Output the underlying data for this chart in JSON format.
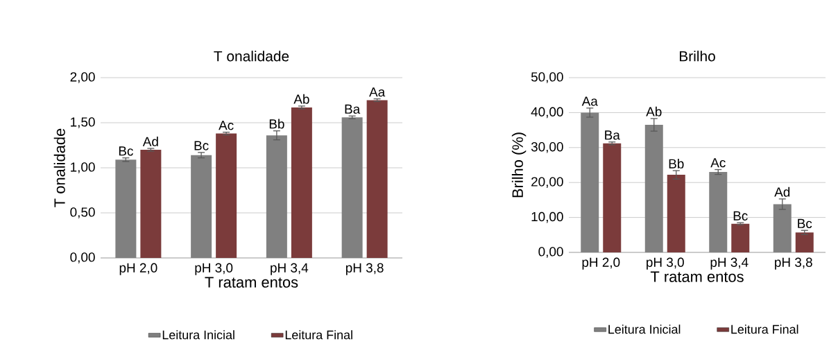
{
  "chart_data": [
    {
      "type": "bar",
      "title": "T onalidade",
      "xlabel": "T ratam entos",
      "ylabel": "T onalidade",
      "categories": [
        "pH 2,0",
        "pH 3,0",
        "pH 3,4",
        "pH 3,8"
      ],
      "series": [
        {
          "name": "Leitura Inicial",
          "color": "#808080",
          "values": [
            1.09,
            1.14,
            1.36,
            1.56
          ],
          "errors": [
            0.02,
            0.03,
            0.05,
            0.015
          ],
          "value_labels": [
            "Bc",
            "Bc",
            "Bb",
            "Ba"
          ]
        },
        {
          "name": "Leitura Final",
          "color": "#7b3b3b",
          "values": [
            1.2,
            1.38,
            1.67,
            1.75
          ],
          "errors": [
            0.015,
            0.015,
            0.015,
            0.015
          ],
          "value_labels": [
            "Ad",
            "Ac",
            "Ab",
            "Aa"
          ]
        }
      ],
      "ylim": [
        0,
        2
      ],
      "yticks": [
        {
          "value": 0,
          "label": "0,00"
        },
        {
          "value": 0.5,
          "label": "0,50"
        },
        {
          "value": 1,
          "label": "1,00"
        },
        {
          "value": 1.5,
          "label": "1,50"
        },
        {
          "value": 2,
          "label": "2,00"
        }
      ],
      "grid": "y",
      "legend": "bottom"
    },
    {
      "type": "bar",
      "title": "Brilho",
      "xlabel": "T ratam entos",
      "ylabel": "Brilho (%)",
      "categories": [
        "pH 2,0",
        "pH 3,0",
        "pH 3,4",
        "pH 3,8"
      ],
      "series": [
        {
          "name": "Leitura Inicial",
          "color": "#808080",
          "values": [
            40.0,
            36.5,
            23.0,
            13.8
          ],
          "errors": [
            1.3,
            1.8,
            0.7,
            1.5
          ],
          "value_labels": [
            "Aa",
            "Ab",
            "Ac",
            "Ad"
          ]
        },
        {
          "name": "Leitura Final",
          "color": "#7b3b3b",
          "values": [
            31.2,
            22.2,
            8.2,
            5.7
          ],
          "errors": [
            0.4,
            1.2,
            0.3,
            0.6
          ],
          "value_labels": [
            "Ba",
            "Bb",
            "Bc",
            "Bc"
          ]
        }
      ],
      "ylim": [
        0,
        50
      ],
      "yticks": [
        {
          "value": 0,
          "label": "0,00"
        },
        {
          "value": 10,
          "label": "10,00"
        },
        {
          "value": 20,
          "label": "20,00"
        },
        {
          "value": 30,
          "label": "30,00"
        },
        {
          "value": 40,
          "label": "40,00"
        },
        {
          "value": 50,
          "label": "50,00"
        }
      ],
      "grid": "y",
      "legend": "bottom"
    }
  ]
}
